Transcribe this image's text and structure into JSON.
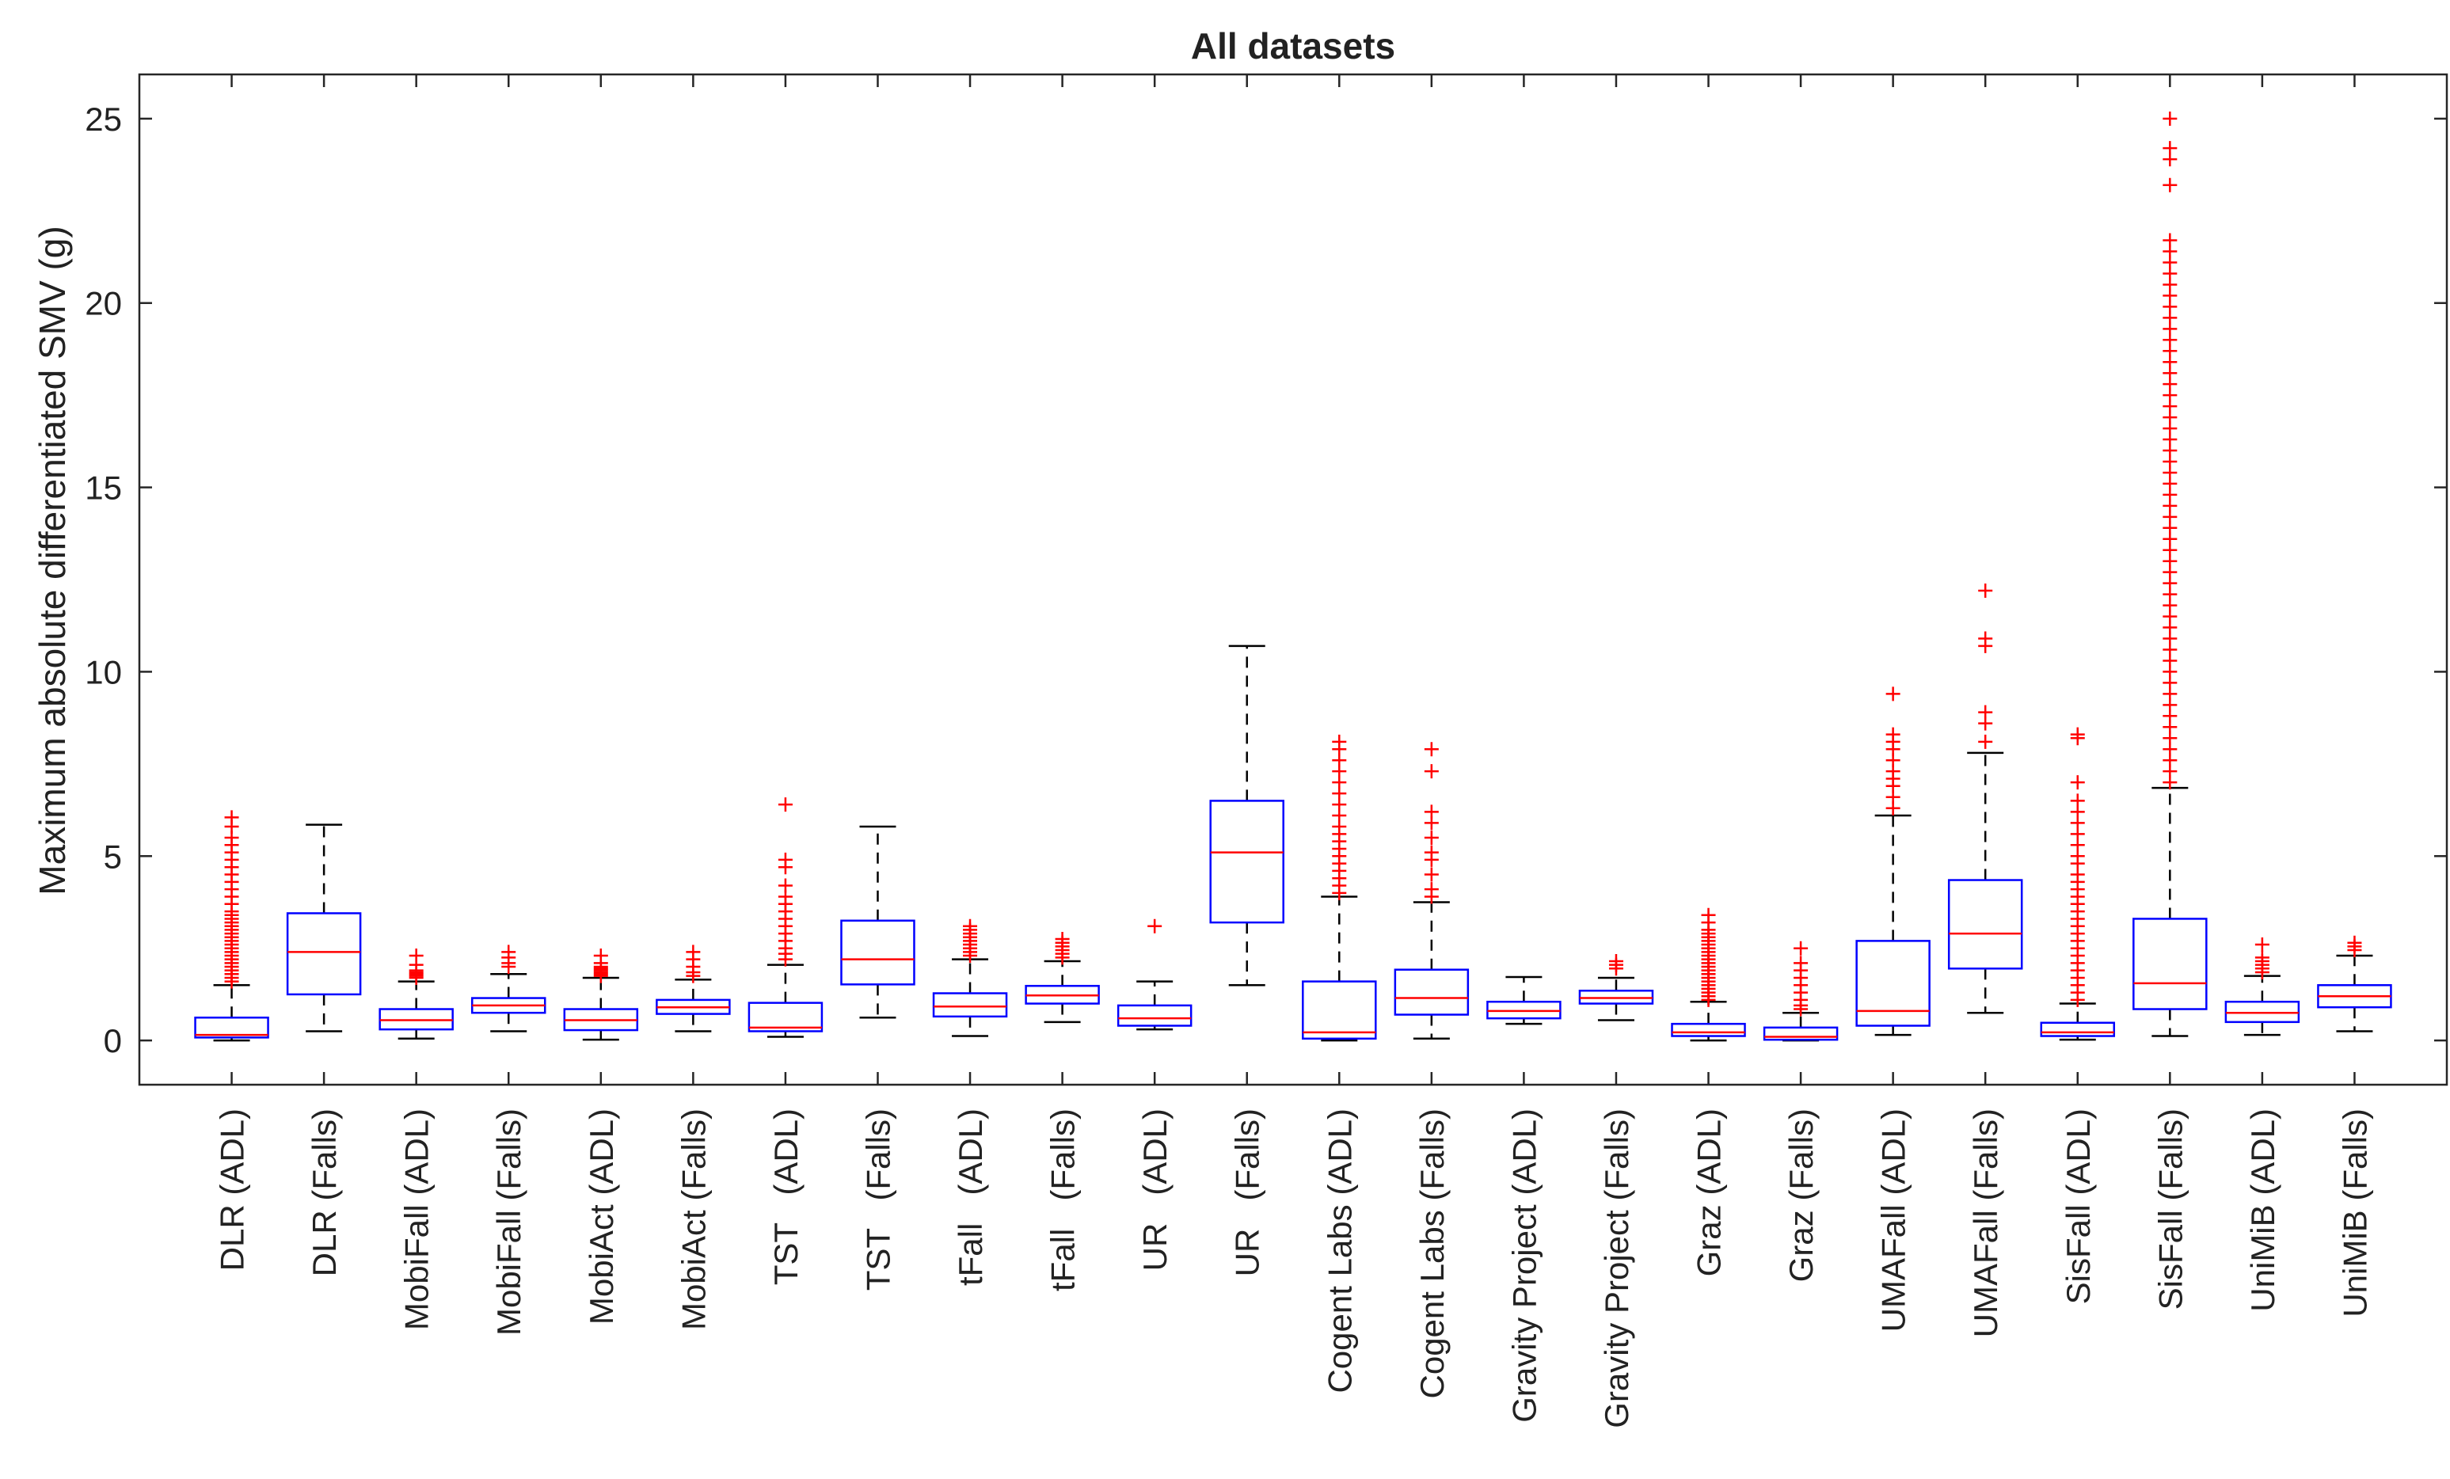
{
  "chart_data": {
    "type": "box",
    "title": "All datasets",
    "xlabel": "",
    "ylabel": "Maximum absolute differentiated SMV (g)",
    "ylim": [
      -1.2,
      26.2
    ],
    "yticks": [
      0,
      5,
      10,
      15,
      20,
      25
    ],
    "colors": {
      "box": "#0000ff",
      "median": "#ff0000",
      "whisker": "#000000",
      "outlier": "#ff0000",
      "axis": "#262626"
    },
    "categories": [
      "DLR (ADL)",
      "DLR (Falls)",
      "MobiFall (ADL)",
      "MobiFall (Falls)",
      "MobiAct (ADL)",
      "MobiAct (Falls)",
      "TST   (ADL)",
      "TST   (Falls)",
      "tFall   (ADL)",
      "tFall   (Falls)",
      "UR   (ADL)",
      "UR   (Falls)",
      "Cogent Labs (ADL)",
      "Cogent Labs (Falls)",
      "Gravity Project (ADL)",
      "Gravity Project (Falls)",
      "Graz (ADL)",
      "Graz (Falls)",
      "UMAFall (ADL)",
      "UMAFall (Falls)",
      "SisFall (ADL)",
      "SisFall (Falls)",
      "UniMiB (ADL)",
      "UniMiB (Falls)"
    ],
    "boxes": [
      {
        "q1": 0.08,
        "median": 0.15,
        "q3": 0.62,
        "whisker_low": 0.0,
        "whisker_high": 1.5,
        "outliers": [
          1.6,
          1.7,
          1.8,
          1.9,
          2.0,
          2.1,
          2.2,
          2.3,
          2.4,
          2.5,
          2.6,
          2.7,
          2.8,
          2.9,
          3.0,
          3.1,
          3.2,
          3.3,
          3.4,
          3.5,
          3.7,
          3.9,
          4.1,
          4.3,
          4.5,
          4.7,
          4.9,
          5.1,
          5.3,
          5.5,
          5.8,
          6.05
        ]
      },
      {
        "q1": 1.25,
        "median": 2.4,
        "q3": 3.45,
        "whisker_low": 0.25,
        "whisker_high": 5.85,
        "outliers": []
      },
      {
        "q1": 0.3,
        "median": 0.55,
        "q3": 0.85,
        "whisker_low": 0.05,
        "whisker_high": 1.6,
        "outliers": [
          1.7,
          1.75,
          1.8,
          1.85,
          1.9,
          2.05,
          2.3
        ]
      },
      {
        "q1": 0.75,
        "median": 0.95,
        "q3": 1.15,
        "whisker_low": 0.25,
        "whisker_high": 1.8,
        "outliers": [
          2.0,
          2.1,
          2.25,
          2.4
        ]
      },
      {
        "q1": 0.28,
        "median": 0.55,
        "q3": 0.85,
        "whisker_low": 0.02,
        "whisker_high": 1.7,
        "outliers": [
          1.75,
          1.8,
          1.85,
          1.9,
          1.95,
          2.0,
          2.1,
          2.3
        ]
      },
      {
        "q1": 0.72,
        "median": 0.9,
        "q3": 1.1,
        "whisker_low": 0.25,
        "whisker_high": 1.65,
        "outliers": [
          1.75,
          1.85,
          2.0,
          2.2,
          2.4
        ]
      },
      {
        "q1": 0.25,
        "median": 0.35,
        "q3": 1.02,
        "whisker_low": 0.1,
        "whisker_high": 2.05,
        "outliers": [
          2.2,
          2.35,
          2.5,
          2.7,
          2.9,
          3.1,
          3.3,
          3.5,
          3.7,
          3.9,
          4.2,
          4.7,
          4.9,
          6.4
        ]
      },
      {
        "q1": 1.52,
        "median": 2.2,
        "q3": 3.25,
        "whisker_low": 0.62,
        "whisker_high": 5.8,
        "outliers": []
      },
      {
        "q1": 0.65,
        "median": 0.92,
        "q3": 1.28,
        "whisker_low": 0.12,
        "whisker_high": 2.2,
        "outliers": [
          2.3,
          2.4,
          2.5,
          2.6,
          2.7,
          2.8,
          2.9,
          3.0,
          3.1
        ]
      },
      {
        "q1": 1.0,
        "median": 1.22,
        "q3": 1.48,
        "whisker_low": 0.5,
        "whisker_high": 2.15,
        "outliers": [
          2.25,
          2.35,
          2.45,
          2.55,
          2.65,
          2.75
        ]
      },
      {
        "q1": 0.4,
        "median": 0.6,
        "q3": 0.95,
        "whisker_low": 0.3,
        "whisker_high": 1.6,
        "outliers": [
          3.1
        ]
      },
      {
        "q1": 3.2,
        "median": 5.1,
        "q3": 6.5,
        "whisker_low": 1.5,
        "whisker_high": 10.7,
        "outliers": []
      },
      {
        "q1": 0.05,
        "median": 0.22,
        "q3": 1.6,
        "whisker_low": 0.0,
        "whisker_high": 3.9,
        "outliers": [
          4.0,
          4.2,
          4.4,
          4.6,
          4.8,
          5.0,
          5.2,
          5.4,
          5.6,
          5.8,
          6.1,
          6.4,
          6.7,
          7.0,
          7.3,
          7.6,
          7.9,
          8.1
        ]
      },
      {
        "q1": 0.7,
        "median": 1.15,
        "q3": 1.92,
        "whisker_low": 0.05,
        "whisker_high": 3.75,
        "outliers": [
          3.9,
          4.1,
          4.5,
          4.9,
          5.1,
          5.5,
          5.9,
          6.2,
          7.3,
          7.9
        ]
      },
      {
        "q1": 0.6,
        "median": 0.8,
        "q3": 1.05,
        "whisker_low": 0.45,
        "whisker_high": 1.72,
        "outliers": []
      },
      {
        "q1": 1.0,
        "median": 1.15,
        "q3": 1.35,
        "whisker_low": 0.55,
        "whisker_high": 1.7,
        "outliers": [
          1.95,
          2.05,
          2.15
        ]
      },
      {
        "q1": 0.12,
        "median": 0.22,
        "q3": 0.45,
        "whisker_low": 0.0,
        "whisker_high": 1.05,
        "outliers": [
          1.1,
          1.2,
          1.3,
          1.4,
          1.5,
          1.6,
          1.7,
          1.8,
          1.9,
          2.0,
          2.1,
          2.2,
          2.3,
          2.4,
          2.5,
          2.6,
          2.7,
          2.8,
          2.9,
          3.0,
          3.2,
          3.4
        ]
      },
      {
        "q1": 0.02,
        "median": 0.1,
        "q3": 0.35,
        "whisker_low": 0.0,
        "whisker_high": 0.75,
        "outliers": [
          0.85,
          0.95,
          1.1,
          1.3,
          1.5,
          1.7,
          1.9,
          2.1,
          2.5
        ]
      },
      {
        "q1": 0.4,
        "median": 0.8,
        "q3": 2.7,
        "whisker_low": 0.15,
        "whisker_high": 6.1,
        "outliers": [
          6.3,
          6.6,
          6.9,
          7.1,
          7.3,
          7.6,
          7.9,
          8.1,
          8.3,
          9.4
        ]
      },
      {
        "q1": 1.95,
        "median": 2.9,
        "q3": 4.35,
        "whisker_low": 0.75,
        "whisker_high": 7.8,
        "outliers": [
          8.1,
          8.6,
          8.9,
          10.7,
          10.9,
          12.2
        ]
      },
      {
        "q1": 0.12,
        "median": 0.22,
        "q3": 0.48,
        "whisker_low": 0.02,
        "whisker_high": 1.0,
        "outliers": [
          1.1,
          1.3,
          1.5,
          1.7,
          1.9,
          2.1,
          2.3,
          2.5,
          2.7,
          2.9,
          3.1,
          3.3,
          3.5,
          3.7,
          3.9,
          4.1,
          4.3,
          4.5,
          4.8,
          5.0,
          5.3,
          5.6,
          5.9,
          6.2,
          6.5,
          7.0,
          8.2,
          8.3
        ]
      },
      {
        "q1": 0.85,
        "median": 1.55,
        "q3": 3.3,
        "whisker_low": 0.12,
        "whisker_high": 6.85,
        "outliers": [
          7.0,
          7.3,
          7.6,
          7.9,
          8.2,
          8.5,
          8.8,
          9.1,
          9.4,
          9.7,
          10.0,
          10.3,
          10.6,
          10.9,
          11.2,
          11.5,
          11.8,
          12.1,
          12.4,
          12.7,
          13.0,
          13.3,
          13.6,
          13.9,
          14.2,
          14.5,
          14.8,
          15.1,
          15.4,
          15.7,
          16.0,
          16.3,
          16.6,
          16.9,
          17.2,
          17.5,
          17.8,
          18.1,
          18.4,
          18.7,
          19.0,
          19.3,
          19.6,
          19.9,
          20.2,
          20.5,
          20.8,
          21.1,
          21.4,
          21.7,
          23.2,
          23.9,
          24.2,
          25.0
        ]
      },
      {
        "q1": 0.5,
        "median": 0.75,
        "q3": 1.05,
        "whisker_low": 0.15,
        "whisker_high": 1.75,
        "outliers": [
          1.85,
          1.95,
          2.05,
          2.15,
          2.25,
          2.6
        ]
      },
      {
        "q1": 0.9,
        "median": 1.2,
        "q3": 1.5,
        "whisker_low": 0.25,
        "whisker_high": 2.3,
        "outliers": [
          2.45,
          2.55,
          2.65
        ]
      }
    ]
  }
}
